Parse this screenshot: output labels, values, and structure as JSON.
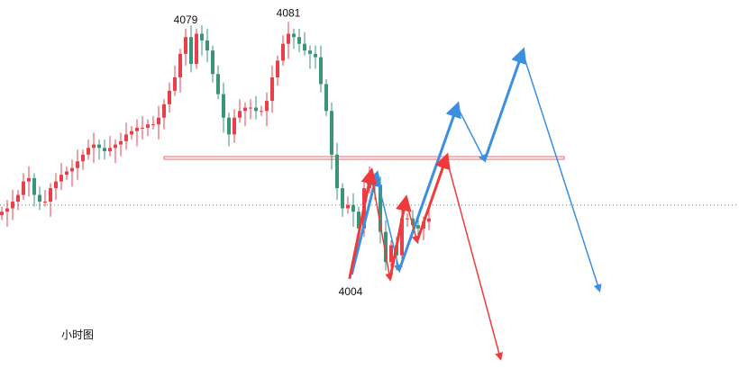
{
  "chart_data": {
    "type": "candlestick",
    "title": "小时图",
    "up_color": "#e8404a",
    "down_color": "#3a9478",
    "closes": [
      4024,
      4025,
      4027,
      4029,
      4033,
      4034,
      4029,
      4027,
      4027,
      4031,
      4033,
      4035,
      4036,
      4037,
      4039,
      4041,
      4043,
      4044,
      4043,
      4042,
      4043,
      4044,
      4045,
      4047,
      4048,
      4049,
      4049,
      4050,
      4050,
      4052,
      4056,
      4060,
      4064,
      4071,
      4076,
      4068,
      4077,
      4075,
      4072,
      4065,
      4059,
      4052,
      4047,
      4052,
      4054,
      4055,
      4055,
      4054,
      4054,
      4057,
      4064,
      4069,
      4074,
      4077,
      4076,
      4074,
      4072,
      4071,
      4070,
      4062,
      4054,
      4041,
      4031,
      4025,
      4026,
      4024,
      4019,
      4031,
      4034,
      4032,
      4018,
      4009,
      4014,
      4011,
      4022,
      4022,
      4020,
      4019,
      4021,
      4022
    ],
    "annotations": [
      {
        "text": "4079",
        "index": 34,
        "price": 4079,
        "position": "above"
      },
      {
        "text": "4081",
        "index": 53,
        "price": 4081,
        "position": "above"
      },
      {
        "text": "4004",
        "index": 64.5,
        "price": 4004,
        "position": "below"
      }
    ],
    "support_line": {
      "price": 4040,
      "from_index": 30,
      "to_index": 104,
      "color": "#e8404a"
    },
    "dotted_line": {
      "price": 4026,
      "color": "#3a9478"
    },
    "scenario_paths": [
      {
        "color": "#3a8fe0",
        "points": [
          [
            64.7,
            4005.3
          ],
          [
            69.3,
            4034.8
          ],
          [
            73.5,
            4006.6
          ],
          [
            84.2,
            4055.4
          ],
          [
            89.3,
            4039.3
          ],
          [
            96.3,
            4071.5
          ],
          [
            110.5,
            4000.7
          ]
        ]
      },
      {
        "color": "#f03a3a",
        "points": [
          [
            64.3,
            4004.0
          ],
          [
            68.3,
            4035.6
          ],
          [
            71.8,
            4004.0
          ],
          [
            74.7,
            4027.5
          ],
          [
            76.8,
            4015.2
          ],
          [
            82.2,
            4040.1
          ],
          [
            92.2,
            3980.4
          ]
        ]
      }
    ]
  }
}
